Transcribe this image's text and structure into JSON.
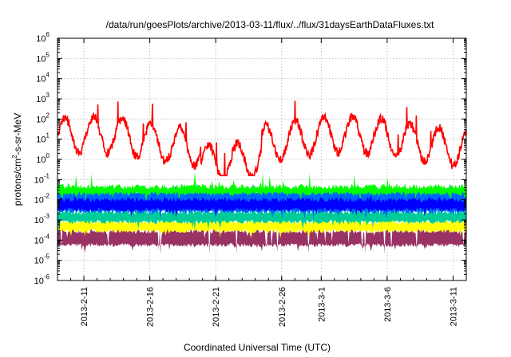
{
  "chart_data": {
    "type": "area",
    "title": "/data/run/goesPlots/archive/2013-03-11/flux/../flux/31daysEarthDataFluxes.txt",
    "xlabel": "Coordinated Universal Time (UTC)",
    "ylabel_main": "protons/cm",
    "ylabel_sup": "2",
    "ylabel_tail": "-s-sr-MeV",
    "yscale": "log",
    "ylim_exp": [
      -6,
      6
    ],
    "y_tick_exponents": [
      -6,
      -5,
      -4,
      -3,
      -2,
      -1,
      0,
      1,
      2,
      3,
      4,
      5,
      6
    ],
    "y_tick_base": "10",
    "x_range_days": [
      "2013-02-09",
      "2013-03-12"
    ],
    "x_ticks": [
      "2013-2-11",
      "2013-2-16",
      "2013-2-21",
      "2013-2-26",
      "2013-3-1",
      "2013-3-6",
      "2013-3-11"
    ],
    "grid": true,
    "series": [
      {
        "color": "#993366",
        "band_log10": [
          -4.25,
          -3.55
        ],
        "spike_log10": -4.7
      },
      {
        "color": "#ffff00",
        "band_log10": [
          -3.55,
          -3.1
        ],
        "spike_log10": -2.85
      },
      {
        "color": "#00cc99",
        "band_log10": [
          -3.1,
          -2.6
        ],
        "spike_log10": -2.3
      },
      {
        "color": "#0066ff",
        "band_log10": [
          -2.6,
          -1.55
        ],
        "spike_log10": -1.2
      },
      {
        "color": "#00ff00",
        "band_log10": [
          -1.7,
          -1.35
        ],
        "spike_log10": -0.6
      },
      {
        "color": "#0000ff",
        "band_log10": [
          -2.5,
          -2.0
        ],
        "spike_log10": -1.75
      },
      {
        "color": "#ff0000",
        "line_log10_range": [
          -0.8,
          2.9
        ]
      }
    ]
  }
}
